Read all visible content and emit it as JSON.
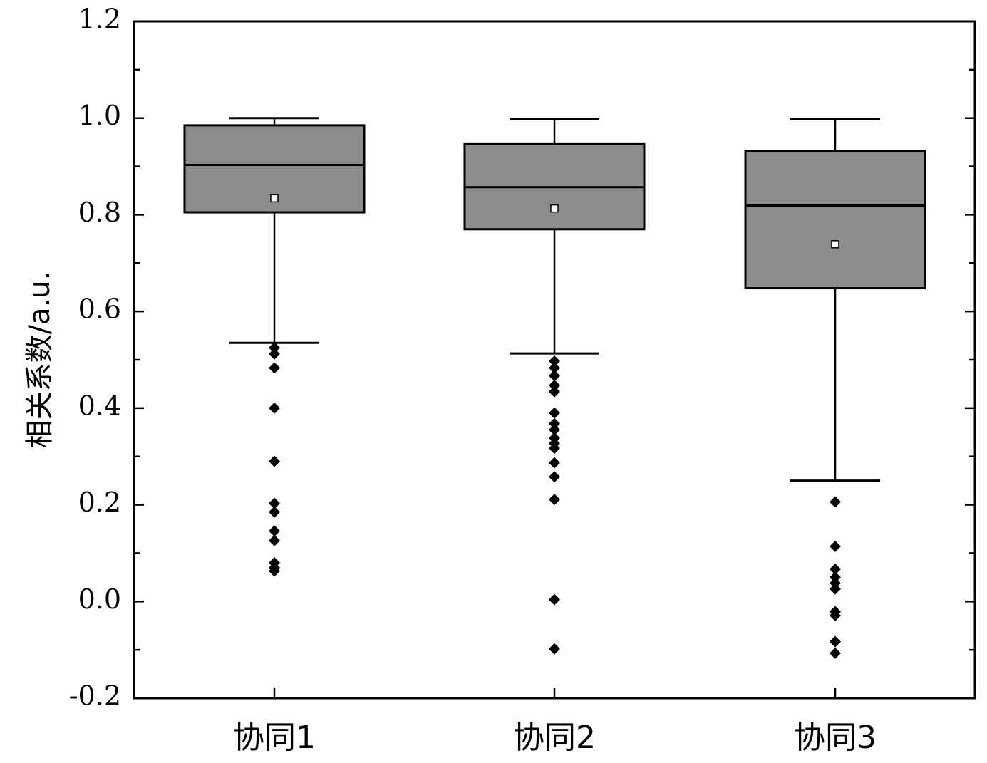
{
  "chart_data": {
    "type": "box",
    "ylabel": "相关系数/a.u.",
    "xlabel": "",
    "ylim": [
      -0.2,
      1.2
    ],
    "yticks": [
      -0.2,
      0.0,
      0.2,
      0.4,
      0.6,
      0.8,
      1.0,
      1.2
    ],
    "ytick_labels": [
      "-0.2",
      "0.0",
      "0.2",
      "0.4",
      "0.6",
      "0.8",
      "1.0",
      "1.2"
    ],
    "categories": [
      "协同1",
      "协同2",
      "协同3"
    ],
    "box_color": "#8c8c8c",
    "outlier_marker": "diamond",
    "mean_marker": "open-square",
    "boxes": [
      {
        "category": "协同1",
        "whisker_low": 0.535,
        "q1": 0.805,
        "median": 0.903,
        "q3": 0.985,
        "whisker_high": 1.0,
        "mean": 0.834,
        "outliers": [
          0.525,
          0.512,
          0.483,
          0.4,
          0.29,
          0.203,
          0.185,
          0.146,
          0.126,
          0.08,
          0.07,
          0.063
        ]
      },
      {
        "category": "协同2",
        "whisker_low": 0.513,
        "q1": 0.77,
        "median": 0.857,
        "q3": 0.946,
        "whisker_high": 0.998,
        "mean": 0.813,
        "outliers": [
          0.497,
          0.483,
          0.467,
          0.447,
          0.434,
          0.39,
          0.368,
          0.355,
          0.338,
          0.327,
          0.317,
          0.287,
          0.258,
          0.211,
          0.004,
          -0.098
        ]
      },
      {
        "category": "协同3",
        "whisker_low": 0.25,
        "q1": 0.648,
        "median": 0.819,
        "q3": 0.932,
        "whisker_high": 0.998,
        "mean": 0.739,
        "outliers": [
          0.206,
          0.114,
          0.067,
          0.05,
          0.038,
          0.026,
          -0.021,
          -0.029,
          -0.083,
          -0.107
        ]
      }
    ]
  }
}
